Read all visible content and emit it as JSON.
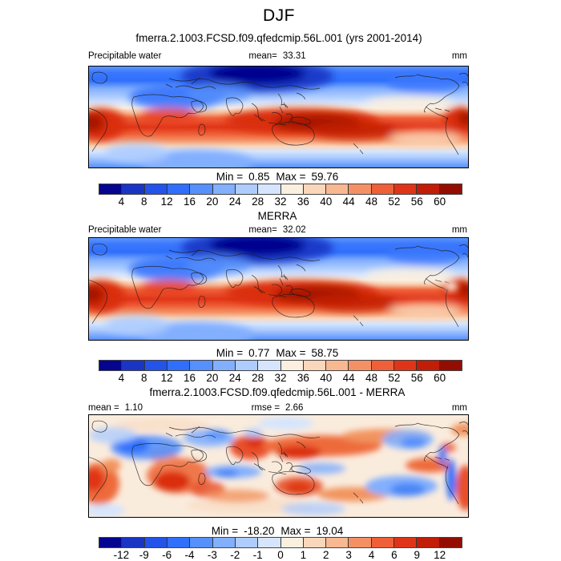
{
  "figure": {
    "season_title": "DJF",
    "case_title": "fmerra.2.1003.FCSD.f09.qfedcmip.56L.001 (yrs 2001-2014)",
    "obs_title": "MERRA",
    "diff_title": "fmerra.2.1003.FCSD.f09.qfedcmip.56L.001 - MERRA"
  },
  "panels": {
    "model": {
      "field_label": "Precipitable water",
      "mean_label": "mean=",
      "mean_value": "33.31",
      "units": "mm",
      "min_label": "Min =",
      "min_value": "0.85",
      "max_label": "Max =",
      "max_value": "59.76"
    },
    "obs": {
      "field_label": "Precipitable water",
      "mean_label": "mean=",
      "mean_value": "32.02",
      "units": "mm",
      "min_label": "Min =",
      "min_value": "0.77",
      "max_label": "Max =",
      "max_value": "58.75"
    },
    "diff": {
      "mean_label": "mean =",
      "mean_value": "1.10",
      "rmse_label": "rmse =",
      "rmse_value": "2.66",
      "units": "mm",
      "min_label": "Min =",
      "min_value": "-18.20",
      "max_label": "Max =",
      "max_value": "19.04"
    }
  },
  "colorbars": {
    "full": {
      "ticks": [
        "4",
        "8",
        "12",
        "16",
        "20",
        "24",
        "28",
        "32",
        "36",
        "40",
        "44",
        "48",
        "52",
        "56",
        "60"
      ],
      "colors": [
        "#05058F",
        "#1A35C3",
        "#2353E8",
        "#2F6FFB",
        "#5590FD",
        "#82AFFE",
        "#AECCFE",
        "#D6E5FD",
        "#FBEFE0",
        "#FAD7BA",
        "#F7B892",
        "#F49164",
        "#EF6038",
        "#E03418",
        "#C21D06",
        "#930E00"
      ]
    },
    "diff": {
      "ticks": [
        "-12",
        "-9",
        "-6",
        "-4",
        "-3",
        "-2",
        "-1",
        "0",
        "1",
        "2",
        "3",
        "4",
        "6",
        "9",
        "12"
      ],
      "colors": [
        "#05058F",
        "#1A35C3",
        "#2353E8",
        "#2F6FFB",
        "#5590FD",
        "#82AFFE",
        "#AECCFE",
        "#D6E5FD",
        "#FBEFE0",
        "#FAD7BA",
        "#F7B892",
        "#F49164",
        "#EF6038",
        "#E03418",
        "#C21D06",
        "#930E00"
      ]
    }
  },
  "chart_data": [
    {
      "type": "heatmap",
      "title": "fmerra.2.1003.FCSD.f09.qfedcmip.56L.001 (yrs 2001-2014)",
      "season": "DJF",
      "variable": "Precipitable water",
      "units": "mm",
      "projection": "global cylindrical lat-lon map",
      "mean": 33.31,
      "min": 0.85,
      "max": 59.76,
      "contour_levels": [
        4,
        8,
        12,
        16,
        20,
        24,
        28,
        32,
        36,
        40,
        44,
        48,
        52,
        56,
        60
      ],
      "palette": "16-level blue-to-red",
      "legend_position": "bottom"
    },
    {
      "type": "heatmap",
      "title": "MERRA",
      "season": "DJF",
      "variable": "Precipitable water",
      "units": "mm",
      "projection": "global cylindrical lat-lon map",
      "mean": 32.02,
      "min": 0.77,
      "max": 58.75,
      "contour_levels": [
        4,
        8,
        12,
        16,
        20,
        24,
        28,
        32,
        36,
        40,
        44,
        48,
        52,
        56,
        60
      ],
      "palette": "16-level blue-to-red",
      "legend_position": "bottom"
    },
    {
      "type": "heatmap",
      "title": "fmerra.2.1003.FCSD.f09.qfedcmip.56L.001 - MERRA",
      "season": "DJF",
      "variable": "Precipitable water difference",
      "units": "mm",
      "projection": "global cylindrical lat-lon map",
      "mean": 1.1,
      "rmse": 2.66,
      "min": -18.2,
      "max": 19.04,
      "contour_levels": [
        -12,
        -9,
        -6,
        -4,
        -3,
        -2,
        -1,
        0,
        1,
        2,
        3,
        4,
        6,
        9,
        12
      ],
      "palette": "16-level blue-to-red",
      "legend_position": "bottom"
    }
  ]
}
